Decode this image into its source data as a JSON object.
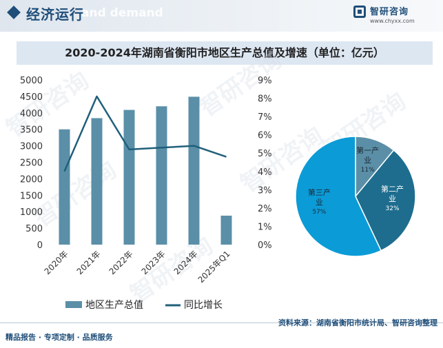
{
  "header": {
    "section_title": "经济运行",
    "section_title_ghost": "and demand",
    "brand_name": "智研咨询",
    "brand_url": "www.chyxx.com"
  },
  "chart_title": "2020-2024年湖南省衡阳市地区生产总值及增速（单位：亿元）",
  "chart_data": [
    {
      "type": "bar",
      "title": "2020-2024年湖南省衡阳市地区生产总值及增速（单位：亿元）",
      "categories": [
        "2020年",
        "2021年",
        "2022年",
        "2023年",
        "2024年",
        "2025年Q1"
      ],
      "series": [
        {
          "name": "地区生产总值",
          "type": "bar",
          "axis": "left",
          "color": "#5b8fa8",
          "values": [
            3500,
            3840,
            4090,
            4200,
            4490,
            880
          ]
        },
        {
          "name": "同比增长",
          "type": "line",
          "axis": "right",
          "unit": "%",
          "color": "#1f5f7a",
          "values": [
            4.0,
            8.1,
            5.2,
            5.3,
            5.4,
            4.8
          ]
        }
      ],
      "y_left": {
        "min": 0,
        "max": 5000,
        "step": 500,
        "ticks": [
          "0",
          "500",
          "1000",
          "1500",
          "2000",
          "2500",
          "3000",
          "3500",
          "4000",
          "4500",
          "5000"
        ]
      },
      "y_right": {
        "min": 0,
        "max": 9,
        "step": 1,
        "ticks": [
          "0%",
          "1%",
          "2%",
          "3%",
          "4%",
          "5%",
          "6%",
          "7%",
          "8%",
          "9%"
        ]
      },
      "legend": {
        "placement": "bottom",
        "items": [
          {
            "label": "地区生产总值",
            "kind": "bar",
            "color": "#5b8fa8"
          },
          {
            "label": "同比增长",
            "kind": "line",
            "color": "#1f5f7a"
          }
        ]
      },
      "grid": false
    },
    {
      "type": "pie",
      "slices": [
        {
          "name": "第一产业",
          "value": 11,
          "label_name": [
            "第一产",
            "业"
          ],
          "label_value": "11%",
          "color": "#5b8fa8",
          "label_color": "#1a2a33"
        },
        {
          "name": "第二产业",
          "value": 32,
          "label_name": [
            "第二产",
            "业"
          ],
          "label_value": "32%",
          "color": "#1e6d8e",
          "label_color": "#ffffff"
        },
        {
          "name": "第三产业",
          "value": 57,
          "label_name": [
            "第三产",
            "业"
          ],
          "label_value": "57%",
          "color": "#0b9bd7",
          "label_color": "#1a2a33"
        }
      ],
      "start_angle_deg": 0,
      "direction": "clockwise"
    }
  ],
  "footer": {
    "source": "资料来源：湖南省衡阳市统计局、智研咨询整理",
    "tagline": "精品报告 · 专项定制 · 品质服务"
  },
  "watermark_text": "智研咨询"
}
